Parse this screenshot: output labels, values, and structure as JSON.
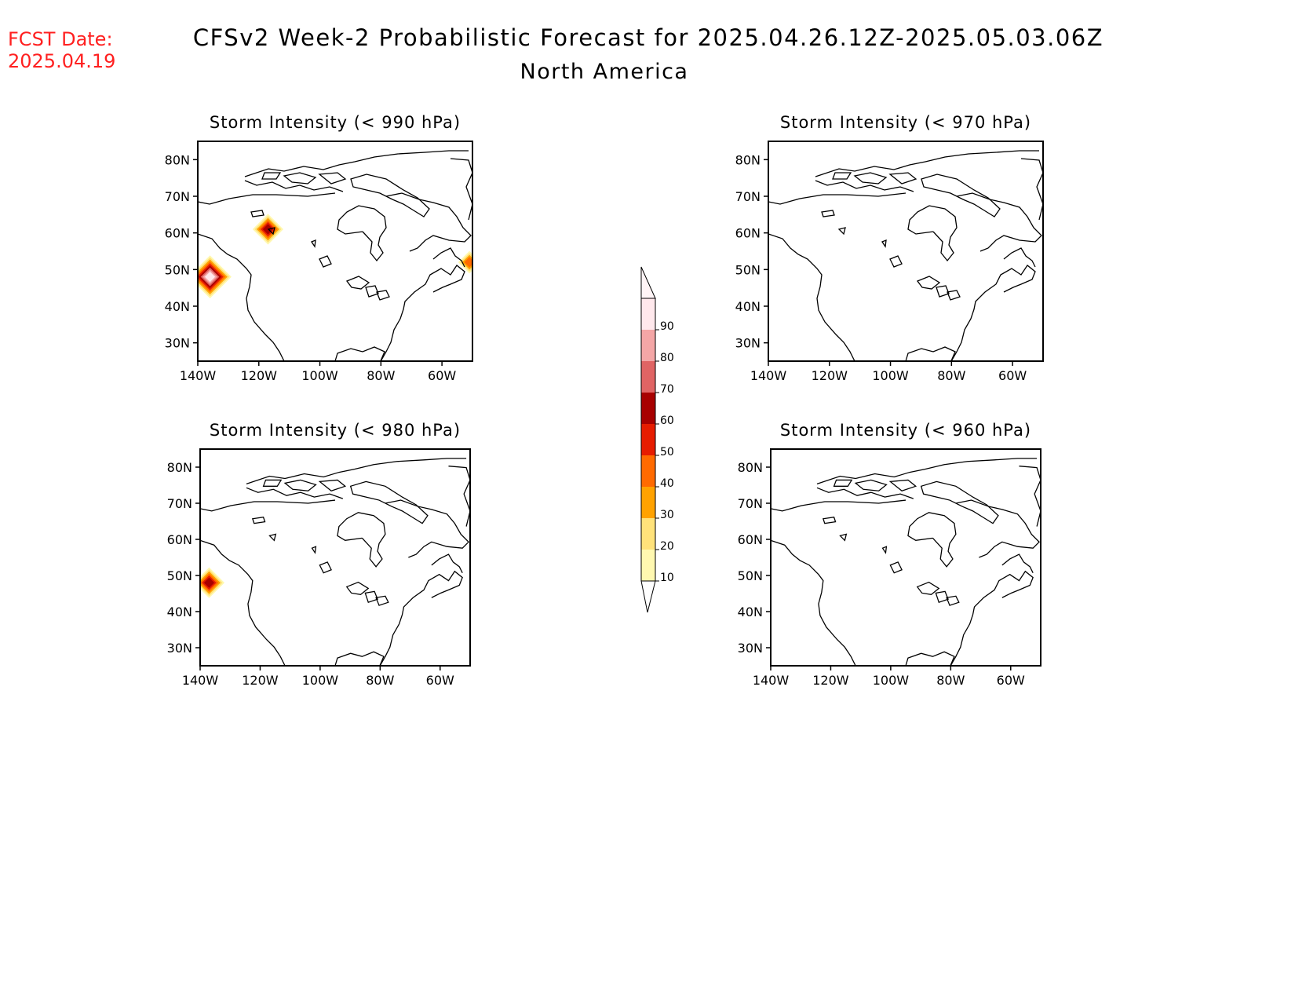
{
  "fcst": {
    "label": "FCST Date:",
    "date": "2025.04.19",
    "color": "#ff2020"
  },
  "title": {
    "line1": "CFSv2 Week-2 Probabilistic Forecast for 2025.04.26.12Z-2025.05.03.06Z",
    "line2": "North America"
  },
  "map": {
    "lon_range": [
      -140,
      -50
    ],
    "lat_range": [
      25,
      85
    ],
    "lon_ticks": [
      "140W",
      "120W",
      "100W",
      "80W",
      "60W"
    ],
    "lat_ticks": [
      "80N",
      "70N",
      "60N",
      "50N",
      "40N",
      "30N"
    ]
  },
  "panels": [
    {
      "title": "Storm Intensity (< 990 hPa)",
      "hotspots": [
        {
          "lon": -136,
          "lat": 48,
          "max_prob": 90
        },
        {
          "lon": -117,
          "lat": 61,
          "max_prob": 60
        },
        {
          "lon": -51,
          "lat": 52,
          "max_prob": 40
        }
      ]
    },
    {
      "title": "Storm Intensity (< 970 hPa)",
      "hotspots": []
    },
    {
      "title": "Storm Intensity (< 980 hPa)",
      "hotspots": [
        {
          "lon": -137,
          "lat": 48,
          "max_prob": 60
        }
      ]
    },
    {
      "title": "Storm Intensity (< 960 hPa)",
      "hotspots": []
    }
  ],
  "colorbar": {
    "labels": [
      "10",
      "20",
      "30",
      "40",
      "50",
      "60",
      "70",
      "80",
      "90"
    ],
    "colors": [
      "#fff8b0",
      "#ffe27a",
      "#ffa200",
      "#ff6a00",
      "#e61c00",
      "#a80000",
      "#e06464",
      "#f4a6a6",
      "#ffe8ec"
    ]
  }
}
